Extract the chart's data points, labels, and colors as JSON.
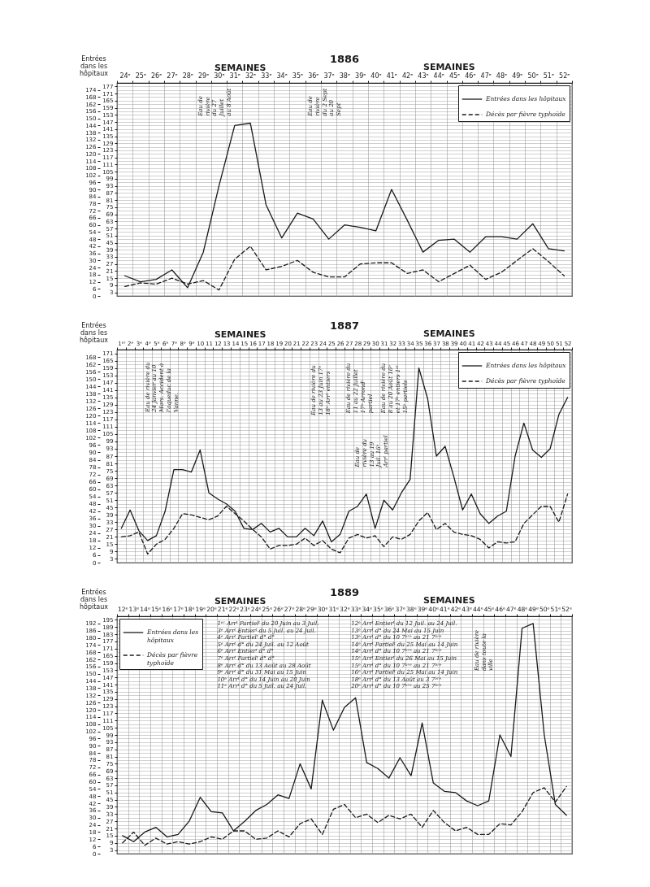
{
  "chart_data": [
    {
      "type": "line",
      "title": "1886",
      "xlabel": "SEMAINES",
      "ylabel": "Entrées dans les hôpitaux",
      "categories": [
        "24ᵉ",
        "25ᵉ",
        "26ᵉ",
        "27ᵉ",
        "28ᵉ",
        "29ᵉ",
        "30ᵉ",
        "31ᵉ",
        "32ᵉ",
        "33ᵉ",
        "34ᵉ",
        "35ᵉ",
        "36ᵉ",
        "37ᵉ",
        "38ᵉ",
        "39ᵉ",
        "40ᵉ",
        "41ᵉ",
        "42ᵉ",
        "43ᵉ",
        "44ᵉ",
        "45ᵉ",
        "46ᵉ",
        "47ᵉ",
        "48ᵉ",
        "49ᵉ",
        "50ᵉ",
        "51ᵉ",
        "52ᵉ"
      ],
      "series": [
        {
          "name": "Entrées dans les hôpitaux",
          "color": "#1a1a1a",
          "line_style": "solid",
          "values": [
            17,
            12,
            14,
            22,
            7,
            37,
            93,
            144,
            146,
            77,
            49,
            70,
            65,
            48,
            60,
            58,
            55,
            90,
            64,
            37,
            47,
            48,
            37,
            50,
            50,
            48,
            61,
            40,
            38
          ]
        },
        {
          "name": "Décès par fièvre typhoïde",
          "color": "#1a1a1a",
          "line_style": "dashed",
          "values": [
            8,
            11,
            10,
            15,
            10,
            13,
            5,
            31,
            42,
            22,
            25,
            30,
            20,
            16,
            16,
            27,
            28,
            28,
            19,
            22,
            12,
            19,
            26,
            14,
            20,
            30,
            40,
            29,
            17
          ]
        }
      ],
      "ylim": [
        0,
        180
      ],
      "yticks": [
        0,
        6,
        12,
        18,
        24,
        30,
        36,
        42,
        48,
        54,
        60,
        66,
        72,
        78,
        84,
        90,
        96,
        102,
        108,
        114,
        120,
        126,
        132,
        138,
        144,
        150,
        156,
        162,
        168,
        174
      ],
      "y2lim": [
        0,
        180
      ],
      "y2ticks": [
        3,
        9,
        15,
        21,
        27,
        33,
        39,
        45,
        51,
        57,
        63,
        69,
        75,
        81,
        87,
        93,
        99,
        105,
        111,
        117,
        123,
        129,
        135,
        141,
        147,
        153,
        159,
        165,
        171,
        177
      ],
      "grid": true,
      "legend": "top right",
      "annotations": [
        "SEMAINES",
        "Eau de rivière du 27 Juillet au 8 Août",
        "Eau de rivière du 2 Sept au 20 Sept"
      ]
    },
    {
      "type": "line",
      "title": "1887",
      "xlabel": "SEMAINES",
      "ylabel": "Entrées dans les hôpitaux",
      "categories": [
        "1ᵉʳ",
        "2ᵉ",
        "3ᵉ",
        "4ᵉ",
        "5ᵉ",
        "6ᵉ",
        "7ᵉ",
        "8ᵉ",
        "9ᵉ",
        "10",
        "11",
        "12",
        "13",
        "14",
        "15",
        "16",
        "17",
        "18",
        "19",
        "20",
        "21",
        "22",
        "23",
        "24",
        "25",
        "26",
        "27",
        "28",
        "29",
        "30",
        "31",
        "32",
        "33",
        "34",
        "35",
        "36",
        "37",
        "38",
        "39",
        "40",
        "41",
        "42",
        "43",
        "44",
        "45",
        "46",
        "47",
        "48",
        "49",
        "50",
        "51",
        "52"
      ],
      "series": [
        {
          "name": "Entrées dans les hôpitaux",
          "color": "#1a1a1a",
          "line_style": "solid",
          "values": [
            28,
            43,
            26,
            18,
            22,
            42,
            76,
            76,
            74,
            92,
            57,
            52,
            48,
            42,
            28,
            27,
            32,
            25,
            28,
            21,
            21,
            28,
            22,
            34,
            17,
            23,
            42,
            46,
            56,
            28,
            51,
            43,
            57,
            68,
            159,
            134,
            87,
            95,
            70,
            43,
            56,
            40,
            32,
            38,
            42,
            87,
            114,
            92,
            86,
            93,
            121,
            135
          ]
        },
        {
          "name": "Décès par fièvre typhoïde",
          "color": "#1a1a1a",
          "line_style": "dashed",
          "values": [
            21,
            22,
            25,
            7,
            15,
            19,
            28,
            40,
            39,
            37,
            35,
            38,
            46,
            40,
            34,
            27,
            21,
            11,
            14,
            14,
            15,
            20,
            14,
            18,
            11,
            8,
            20,
            23,
            20,
            22,
            13,
            21,
            19,
            23,
            34,
            41,
            27,
            32,
            25,
            23,
            22,
            19,
            12,
            17,
            16,
            17,
            32,
            39,
            46,
            46,
            33,
            56
          ]
        }
      ],
      "ylim": [
        0,
        174
      ],
      "yticks": [
        0,
        6,
        12,
        18,
        24,
        30,
        36,
        42,
        48,
        54,
        60,
        66,
        72,
        78,
        84,
        90,
        96,
        102,
        108,
        114,
        120,
        126,
        132,
        138,
        144,
        150,
        156,
        162,
        168
      ],
      "y2lim": [
        0,
        174
      ],
      "y2ticks": [
        3,
        9,
        15,
        21,
        27,
        33,
        39,
        45,
        51,
        57,
        63,
        69,
        75,
        81,
        87,
        93,
        99,
        105,
        111,
        117,
        123,
        129,
        135,
        141,
        147,
        153,
        159,
        165,
        171
      ],
      "grid": true,
      "legend": "top right",
      "annotations": [
        "SEMAINES",
        "Eau de rivière du 24 Janvier au 10 Mars. Accident à l'aqueduc de la Vanne.",
        "Eau de rivière du 13 au 23 Juin 17ᵉ 18ᵉ Arrᵗ entiers",
        "Eau de rivière du 11 au 22 Juillet 17ᵉ Arrondᵗ partiel",
        "Eau de rivière du 13 au 19 Juil. 16ᵉ Arrᵗ partiel",
        "Eau de rivière du 8 au 20 Août 16ᵉ et 17ᵉ entiers 1ᵉʳ 15ᵉ partiels"
      ]
    },
    {
      "type": "line",
      "title": "1889",
      "xlabel": "SEMAINES",
      "ylabel": "Entrées dans les hôpitaux",
      "categories": [
        "12ᵉ",
        "13ᵉ",
        "14ᵉ",
        "15ᵉ",
        "16ᵉ",
        "17ᵉ",
        "18ᵉ",
        "19ᵉ",
        "20ᵉ",
        "21ᵉ",
        "22ᵉ",
        "23ᵉ",
        "24ᵉ",
        "25ᵉ",
        "26ᵉ",
        "27ᵉ",
        "28ᵉ",
        "29ᵉ",
        "30ᵉ",
        "31ᵉ",
        "32ᵉ",
        "33ᵉ",
        "34ᵉ",
        "35ᵉ",
        "36ᵉ",
        "37ᵉ",
        "38ᵉ",
        "39ᵉ",
        "40ᵉ",
        "41ᵉ",
        "42ᵉ",
        "43ᵉ",
        "44ᵉ",
        "45ᵉ",
        "46ᵉ",
        "47ᵉ",
        "48ᵉ",
        "49ᵉ",
        "50ᵉ",
        "51ᵉ",
        "52ᵉ"
      ],
      "series": [
        {
          "name": "Entrées dans les hôpitaux",
          "color": "#1a1a1a",
          "line_style": "solid",
          "values": [
            15,
            10,
            18,
            22,
            14,
            16,
            27,
            47,
            35,
            34,
            19,
            27,
            36,
            41,
            49,
            46,
            75,
            54,
            128,
            103,
            122,
            130,
            76,
            71,
            63,
            80,
            65,
            109,
            59,
            52,
            51,
            44,
            40,
            44,
            99,
            81,
            188,
            192,
            99,
            41,
            32
          ]
        },
        {
          "name": "Décès par fièvre typhoïde",
          "color": "#1a1a1a",
          "line_style": "dashed",
          "values": [
            9,
            18,
            7,
            13,
            8,
            10,
            8,
            10,
            14,
            12,
            19,
            19,
            12,
            13,
            19,
            14,
            25,
            29,
            16,
            37,
            41,
            30,
            33,
            26,
            32,
            29,
            33,
            22,
            36,
            26,
            19,
            22,
            16,
            16,
            25,
            24,
            35,
            51,
            55,
            43,
            56
          ]
        }
      ],
      "ylim": [
        0,
        198
      ],
      "yticks": [
        0,
        6,
        12,
        18,
        24,
        30,
        36,
        42,
        48,
        54,
        60,
        66,
        72,
        78,
        84,
        90,
        96,
        102,
        108,
        114,
        120,
        126,
        132,
        138,
        144,
        150,
        156,
        162,
        168,
        174,
        180,
        186,
        192
      ],
      "y2lim": [
        0,
        198
      ],
      "y2ticks": [
        3,
        9,
        15,
        21,
        27,
        33,
        39,
        45,
        51,
        57,
        63,
        69,
        75,
        81,
        87,
        93,
        99,
        105,
        111,
        117,
        123,
        129,
        135,
        141,
        147,
        153,
        159,
        165,
        171,
        177,
        183,
        189,
        195
      ],
      "grid": true,
      "legend": "top left",
      "annotations": [
        "SEMAINES",
        "1ᵉʳ Arrᵗ Partielᵗ du 20 Juin au 3 Juil.",
        "3ᵉ Arrᵗ Entierᵗ du 5 Juil. au 24 Juil.",
        "4ᵉ Arrᵗ Partielᵗ d° d°",
        "5ᵉ Arrᵗ d° du 24 Juil. au 12 Août",
        "6ᵉ Arrᵗ Entierᵗ d° d°",
        "7ᵉ Arrᵗ Partielᵗ d° d°",
        "8ᵉ Arrᵗ d° du 13 Août au 28 Août",
        "9ᵉ Arrᵗ d° du 31 Mai au 15 Juin",
        "10ᵉ Arrᵗ d° du 14 Juin au 20 Juin",
        "11ᵉ Arrᵗ d° du 5 Juil. au 24 Juil.",
        "12ᵉ Arrᵗ Entierᵗ du 12 Juil. au 24 Juil.",
        "13ᵉ Arrᵗ d° du 24 Mai au 15 Juin",
        "13ᵉ Arrᵗ d° du 10 7ᵇʳᵉ au 21 7ᵇʳᵉ",
        "14ᵉ Arrᵗ Partielᵗ du 25 Mai au 14 Juin",
        "14ᵉ Arrᵗ d° du 10 7ᵇʳᵉ au 21 7ᵇʳᵉ",
        "15ᵉ Arrᵗ Entierᵗ du 26 Mai au 15 Juin",
        "15ᵉ Arrᵗ d° du 10 7ᵇʳᵉ au 21 7ᵇʳᵉ",
        "16ᵉ Arrᵗ Partielᵗ du 25 Mai au 14 Juin",
        "18ᵉ Arrᵗ d° du 13 Août au 3 7ᵇʳᵉ",
        "20ᵉ Arrᵗ d° du 10 7ᵇʳᵉ au 25 7ᵇʳᵉ",
        "Eau de rivière dans toute la ville"
      ]
    }
  ]
}
